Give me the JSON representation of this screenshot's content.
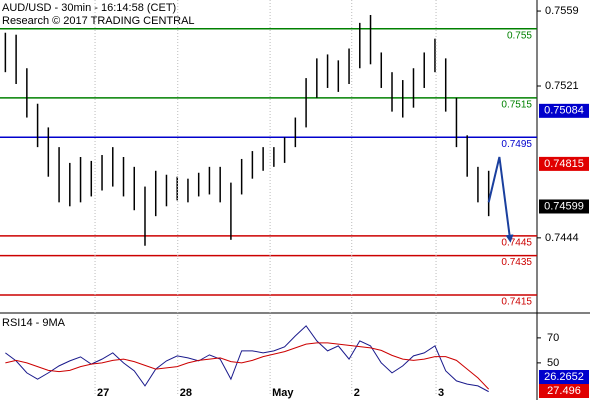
{
  "chart_data": [
    {
      "type": "ohlc",
      "title": "AUD/USD - 30min - 16:14:58 (CET)",
      "subtitle": "Research © 2017 TRADING CENTRAL",
      "x": [
        1,
        3,
        5,
        7,
        9,
        11,
        13,
        15,
        17,
        19,
        21,
        23,
        25,
        27,
        29,
        31,
        33,
        35,
        37,
        39,
        41,
        43,
        45,
        47,
        49,
        51,
        53,
        55,
        57,
        59,
        61,
        63,
        65,
        67,
        69,
        71,
        73,
        75,
        77,
        79,
        81,
        83,
        85,
        87,
        89,
        91
      ],
      "high": [
        0.7548,
        0.7547,
        0.753,
        0.7512,
        0.75,
        0.749,
        0.7482,
        0.7485,
        0.7483,
        0.7486,
        0.749,
        0.7485,
        0.748,
        0.747,
        0.7478,
        0.7476,
        0.7475,
        0.7474,
        0.7477,
        0.748,
        0.748,
        0.7472,
        0.7484,
        0.7488,
        0.749,
        0.749,
        0.7495,
        0.7505,
        0.7525,
        0.7535,
        0.7537,
        0.7534,
        0.754,
        0.7553,
        0.7557,
        0.7538,
        0.7528,
        0.7524,
        0.753,
        0.7538,
        0.7545,
        0.7535,
        0.7515,
        0.7496,
        0.748,
        0.7478
      ],
      "low": [
        0.7528,
        0.7522,
        0.7505,
        0.749,
        0.7475,
        0.7462,
        0.746,
        0.7462,
        0.7465,
        0.7468,
        0.747,
        0.7465,
        0.7458,
        0.744,
        0.7455,
        0.746,
        0.7463,
        0.7462,
        0.7465,
        0.7466,
        0.7462,
        0.7443,
        0.7466,
        0.7474,
        0.7478,
        0.748,
        0.7482,
        0.749,
        0.75,
        0.7515,
        0.752,
        0.7518,
        0.7522,
        0.753,
        0.7532,
        0.752,
        0.7508,
        0.7505,
        0.751,
        0.752,
        0.7528,
        0.7508,
        0.749,
        0.7475,
        0.7462,
        0.7455
      ],
      "color": "#000000",
      "xlim": [
        0,
        100
      ],
      "ylim": [
        0.74064,
        0.75646
      ],
      "yticks": [
        0.7559,
        0.7521,
        0.7444
      ],
      "levels": [
        {
          "value": 0.755,
          "color": "#008000"
        },
        {
          "value": 0.7515,
          "color": "#008000"
        },
        {
          "value": 0.7495,
          "color": "#0000cc"
        },
        {
          "value": 0.7445,
          "color": "#cc0000"
        },
        {
          "value": 0.7435,
          "color": "#cc0000"
        },
        {
          "value": 0.7415,
          "color": "#cc0000"
        }
      ],
      "price_labels": [
        {
          "value": 0.75084,
          "color": "#0000cc"
        },
        {
          "value": 0.74815,
          "color": "#e00000"
        },
        {
          "value": 0.74599,
          "color": "#000000"
        }
      ],
      "forecast": {
        "x": [
          91,
          93,
          95
        ],
        "values": [
          0.7462,
          0.7485,
          0.7443
        ],
        "color": "#1a3f9e"
      }
    },
    {
      "type": "line",
      "title": "RSI14 - 9MA",
      "x": [
        1,
        3,
        5,
        7,
        9,
        11,
        13,
        15,
        17,
        19,
        21,
        23,
        25,
        27,
        29,
        31,
        33,
        35,
        37,
        39,
        41,
        43,
        45,
        47,
        49,
        51,
        53,
        55,
        57,
        59,
        61,
        63,
        65,
        67,
        69,
        71,
        73,
        75,
        77,
        79,
        81,
        83,
        85,
        87,
        89,
        91
      ],
      "series": [
        {
          "color": "#1a1a8c",
          "values": [
            58,
            51.6,
            42,
            37,
            42,
            47.6,
            51.6,
            54.8,
            49,
            53,
            58,
            50,
            43.6,
            31.6,
            45,
            51.6,
            55.6,
            54,
            51.6,
            56.4,
            53,
            37,
            59.6,
            59.6,
            58,
            59.6,
            62.8,
            71.6,
            79.6,
            67.6,
            59.6,
            63.6,
            53,
            67.6,
            63.6,
            50,
            42,
            47.6,
            55.6,
            58,
            63.6,
            43.6,
            35.6,
            33,
            31.6,
            27
          ]
        },
        {
          "color": "#cc0000",
          "values": [
            50,
            52,
            50,
            47,
            44,
            43,
            44,
            47,
            49,
            50,
            52,
            53,
            51,
            48,
            45,
            46,
            47,
            50,
            52,
            53,
            54,
            51,
            50,
            52,
            55,
            57,
            59,
            62,
            65,
            66,
            66,
            65,
            64,
            63,
            62,
            60,
            56,
            53,
            52,
            53,
            55,
            55,
            52,
            45,
            38,
            29
          ]
        }
      ],
      "xlim": [
        0,
        100
      ],
      "ylim": [
        24.3,
        87.5
      ],
      "yticks": [
        70,
        50
      ],
      "xticks": [
        {
          "value": 17.7,
          "label": "27"
        },
        {
          "value": 33.1,
          "label": "28"
        },
        {
          "value": 50.3,
          "label": "May"
        },
        {
          "value": 65.5,
          "label": "2"
        },
        {
          "value": 81.2,
          "label": "3"
        }
      ],
      "price_labels": [
        {
          "value": 27.496,
          "color": "#e00000"
        },
        {
          "value": 26.2652,
          "color": "#0000cc"
        }
      ]
    }
  ]
}
